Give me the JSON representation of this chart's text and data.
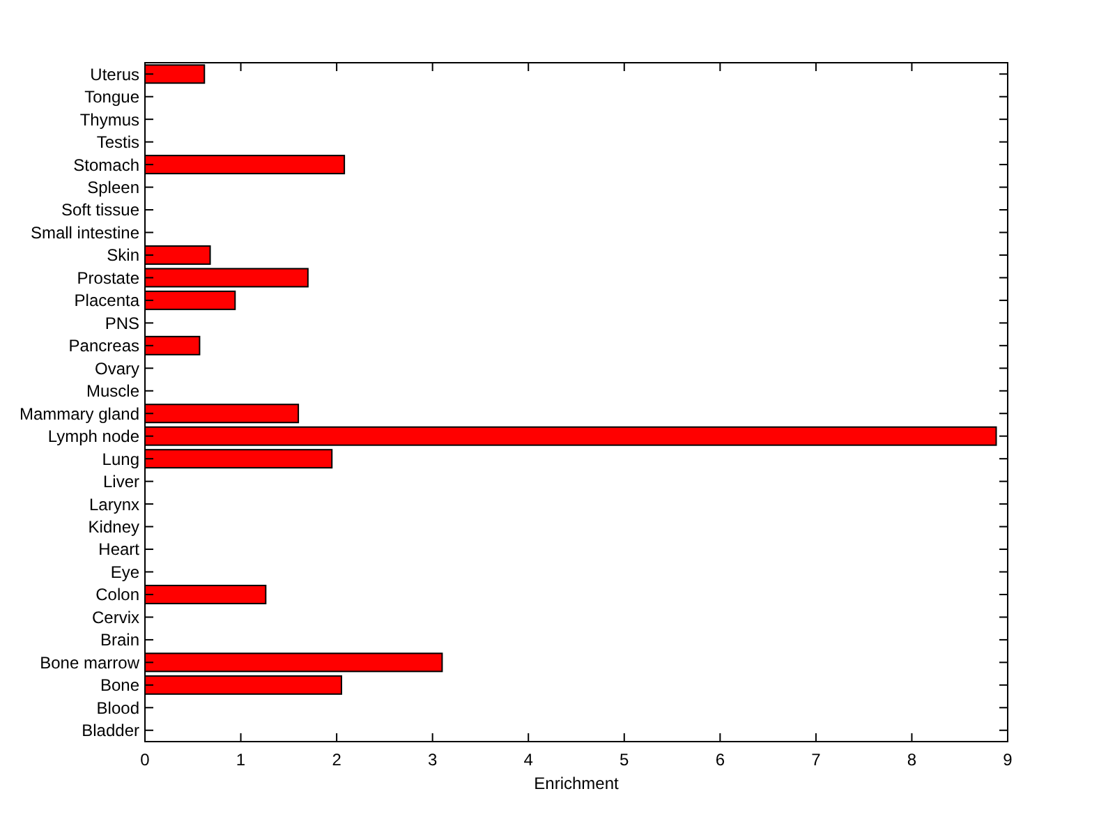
{
  "chart_data": {
    "type": "bar",
    "orientation": "horizontal",
    "xlabel": "Enrichment",
    "categories": [
      "Uterus",
      "Tongue",
      "Thymus",
      "Testis",
      "Stomach",
      "Spleen",
      "Soft tissue",
      "Small intestine",
      "Skin",
      "Prostate",
      "Placenta",
      "PNS",
      "Pancreas",
      "Ovary",
      "Muscle",
      "Mammary gland",
      "Lymph node",
      "Lung",
      "Liver",
      "Larynx",
      "Kidney",
      "Heart",
      "Eye",
      "Colon",
      "Cervix",
      "Brain",
      "Bone marrow",
      "Bone",
      "Blood",
      "Bladder"
    ],
    "values": [
      0.62,
      0,
      0,
      0,
      2.08,
      0,
      0,
      0,
      0.68,
      1.7,
      0.94,
      0,
      0.57,
      0,
      0,
      1.6,
      8.88,
      1.95,
      0,
      0,
      0,
      0,
      0,
      1.26,
      0,
      0,
      3.1,
      2.05,
      0,
      0
    ],
    "color": "#ff0000",
    "xlim": [
      0,
      9
    ],
    "xticks": [
      0,
      1,
      2,
      3,
      4,
      5,
      6,
      7,
      8,
      9
    ],
    "grid": false
  }
}
